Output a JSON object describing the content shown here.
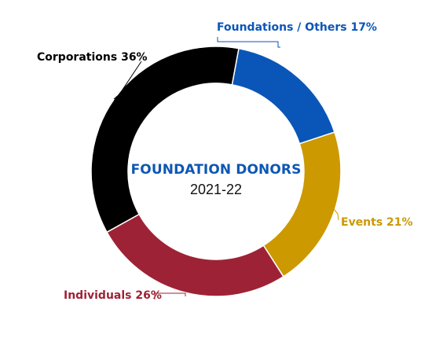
{
  "chart_data": {
    "type": "pie",
    "variant": "donut",
    "title": "FOUNDATION DONORS",
    "subtitle": "2021-22",
    "categories": [
      "Foundations / Others",
      "Events",
      "Individuals",
      "Corporations"
    ],
    "values": [
      17,
      21,
      26,
      36
    ],
    "unit": "%",
    "labels": [
      "Foundations / Others 17%",
      "Events 21%",
      "Individuals 26%",
      "Corporations 36%"
    ],
    "colors": [
      "#0a56b8",
      "#cc9900",
      "#9e2235",
      "#000000"
    ],
    "title_color": "#0d57b4"
  }
}
